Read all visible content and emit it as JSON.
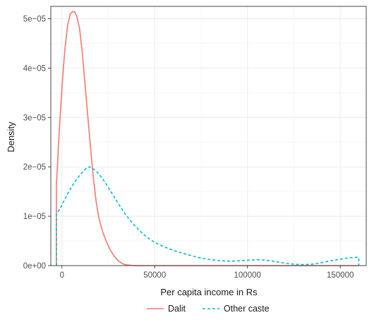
{
  "chart_data": {
    "type": "line",
    "title": "",
    "xlabel": "Per capita income in Rs",
    "ylabel": "Density",
    "xlim": [
      -6000,
      164000
    ],
    "ylim": [
      0,
      5.25e-05
    ],
    "x_ticks": [
      0,
      50000,
      100000,
      150000
    ],
    "x_tick_labels": [
      "0",
      "50000",
      "100000",
      "150000"
    ],
    "y_ticks": [
      0,
      1e-05,
      2e-05,
      3e-05,
      4e-05,
      5e-05
    ],
    "y_tick_labels": [
      "0e+00",
      "1e−05",
      "2e−05",
      "3e−05",
      "4e−05",
      "5e−05"
    ],
    "grid": true,
    "legend_position": "bottom",
    "series": [
      {
        "name": "Dalit",
        "color": "#F8766D",
        "style": "solid",
        "x": [
          -3000,
          -3000,
          -2500,
          -1500,
          0,
          1500,
          3000,
          4500,
          6000,
          7000,
          8000,
          9500,
          11000,
          12500,
          14000,
          15500,
          17000,
          18500,
          20000,
          22000,
          24000,
          26000,
          28000,
          30000,
          32000,
          34000,
          36000,
          38000,
          40000,
          45000,
          50000,
          60000,
          80000,
          100000,
          130000,
          160000
        ],
        "y": [
          0,
          1.65e-05,
          1.95e-05,
          2.7e-05,
          3.6e-05,
          4.35e-05,
          4.85e-05,
          5.1e-05,
          5.15e-05,
          5.13e-05,
          5.05e-05,
          4.8e-05,
          4.3e-05,
          3.65e-05,
          3e-05,
          2.35e-05,
          1.75e-05,
          1.28e-05,
          9.5e-06,
          6.8e-06,
          4.8e-06,
          3.2e-06,
          2e-06,
          1.1e-06,
          5e-07,
          2e-07,
          1e-07,
          3e-08,
          1e-08,
          0,
          0,
          0,
          0,
          0,
          0,
          0
        ]
      },
      {
        "name": "Other caste",
        "color": "#00BFC4",
        "style": "dashed",
        "x": [
          -3000,
          -3000,
          -1000,
          1000,
          3000,
          5000,
          7000,
          9000,
          11000,
          13000,
          14500,
          16000,
          18000,
          20000,
          23000,
          26000,
          30000,
          34000,
          38000,
          42000,
          46000,
          50000,
          55000,
          60000,
          65000,
          70000,
          75000,
          80000,
          85000,
          90000,
          95000,
          100000,
          105000,
          110000,
          115000,
          120000,
          125000,
          130000,
          135000,
          140000,
          145000,
          150000,
          155000,
          159000,
          160000,
          160000
        ],
        "y": [
          0,
          1.05e-05,
          1.15e-05,
          1.3e-05,
          1.45e-05,
          1.58e-05,
          1.7e-05,
          1.8e-05,
          1.89e-05,
          1.97e-05,
          2e-05,
          1.98e-05,
          1.93e-05,
          1.85e-05,
          1.7e-05,
          1.52e-05,
          1.28e-05,
          1.05e-05,
          8.6e-06,
          7e-06,
          5.7e-06,
          4.7e-06,
          3.8e-06,
          3.1e-06,
          2.5e-06,
          2e-06,
          1.5e-06,
          1.2e-06,
          1e-06,
          9e-07,
          9.5e-07,
          1.1e-06,
          1.2e-06,
          1.1e-06,
          8e-07,
          5e-07,
          3e-07,
          2e-07,
          3e-07,
          6e-07,
          1e-06,
          1.3e-06,
          1.6e-06,
          1.7e-06,
          1.6e-06,
          0
        ]
      }
    ]
  }
}
